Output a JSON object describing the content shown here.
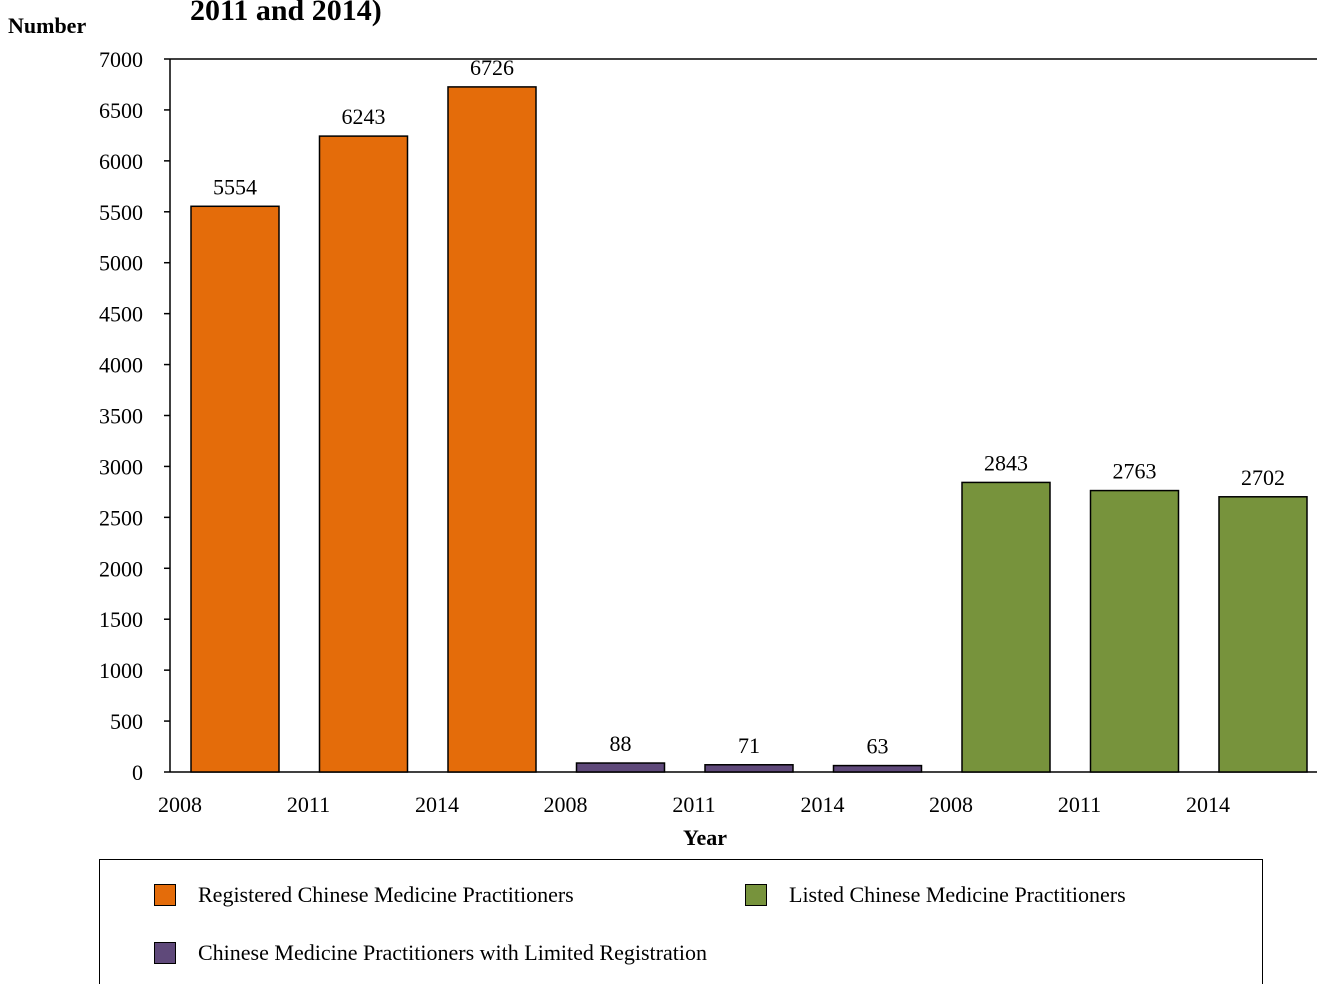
{
  "chart_data": {
    "type": "bar",
    "title": "2011 and 2014)",
    "xlabel": "Year",
    "ylabel": "Number",
    "ylim": [
      0,
      7000
    ],
    "yticks": [
      "0",
      "500",
      "1000",
      "1500",
      "2000",
      "2500",
      "3000",
      "3500",
      "4000",
      "4500",
      "5000",
      "5500",
      "6000",
      "6500",
      "7000"
    ],
    "xticks": [
      "2008",
      "2011",
      "2014",
      "2008",
      "2011",
      "2014",
      "2008",
      "2011",
      "2014"
    ],
    "grid": false,
    "legend_position": "bottom",
    "series": [
      {
        "name": "Registered Chinese Medicine Practitioners",
        "color": "#e46c0a",
        "values": [
          5554,
          6243,
          6726
        ],
        "labels": [
          "5554",
          "6243",
          "6726"
        ]
      },
      {
        "name": "Chinese Medicine Practitioners with Limited Registration",
        "color": "#5f497a",
        "values": [
          88,
          71,
          63
        ],
        "labels": [
          "88",
          "71",
          "63"
        ]
      },
      {
        "name": "Listed Chinese Medicine Practitioners",
        "color": "#77933c",
        "values": [
          2843,
          2763,
          2702
        ],
        "labels": [
          "2843",
          "2763",
          "2702"
        ]
      }
    ],
    "legend": [
      {
        "label": "Registered Chinese Medicine Practitioners",
        "color": "#e46c0a"
      },
      {
        "label": "Listed Chinese Medicine Practitioners",
        "color": "#77933c"
      },
      {
        "label": "Chinese Medicine Practitioners with Limited Registration",
        "color": "#5f497a"
      }
    ]
  }
}
